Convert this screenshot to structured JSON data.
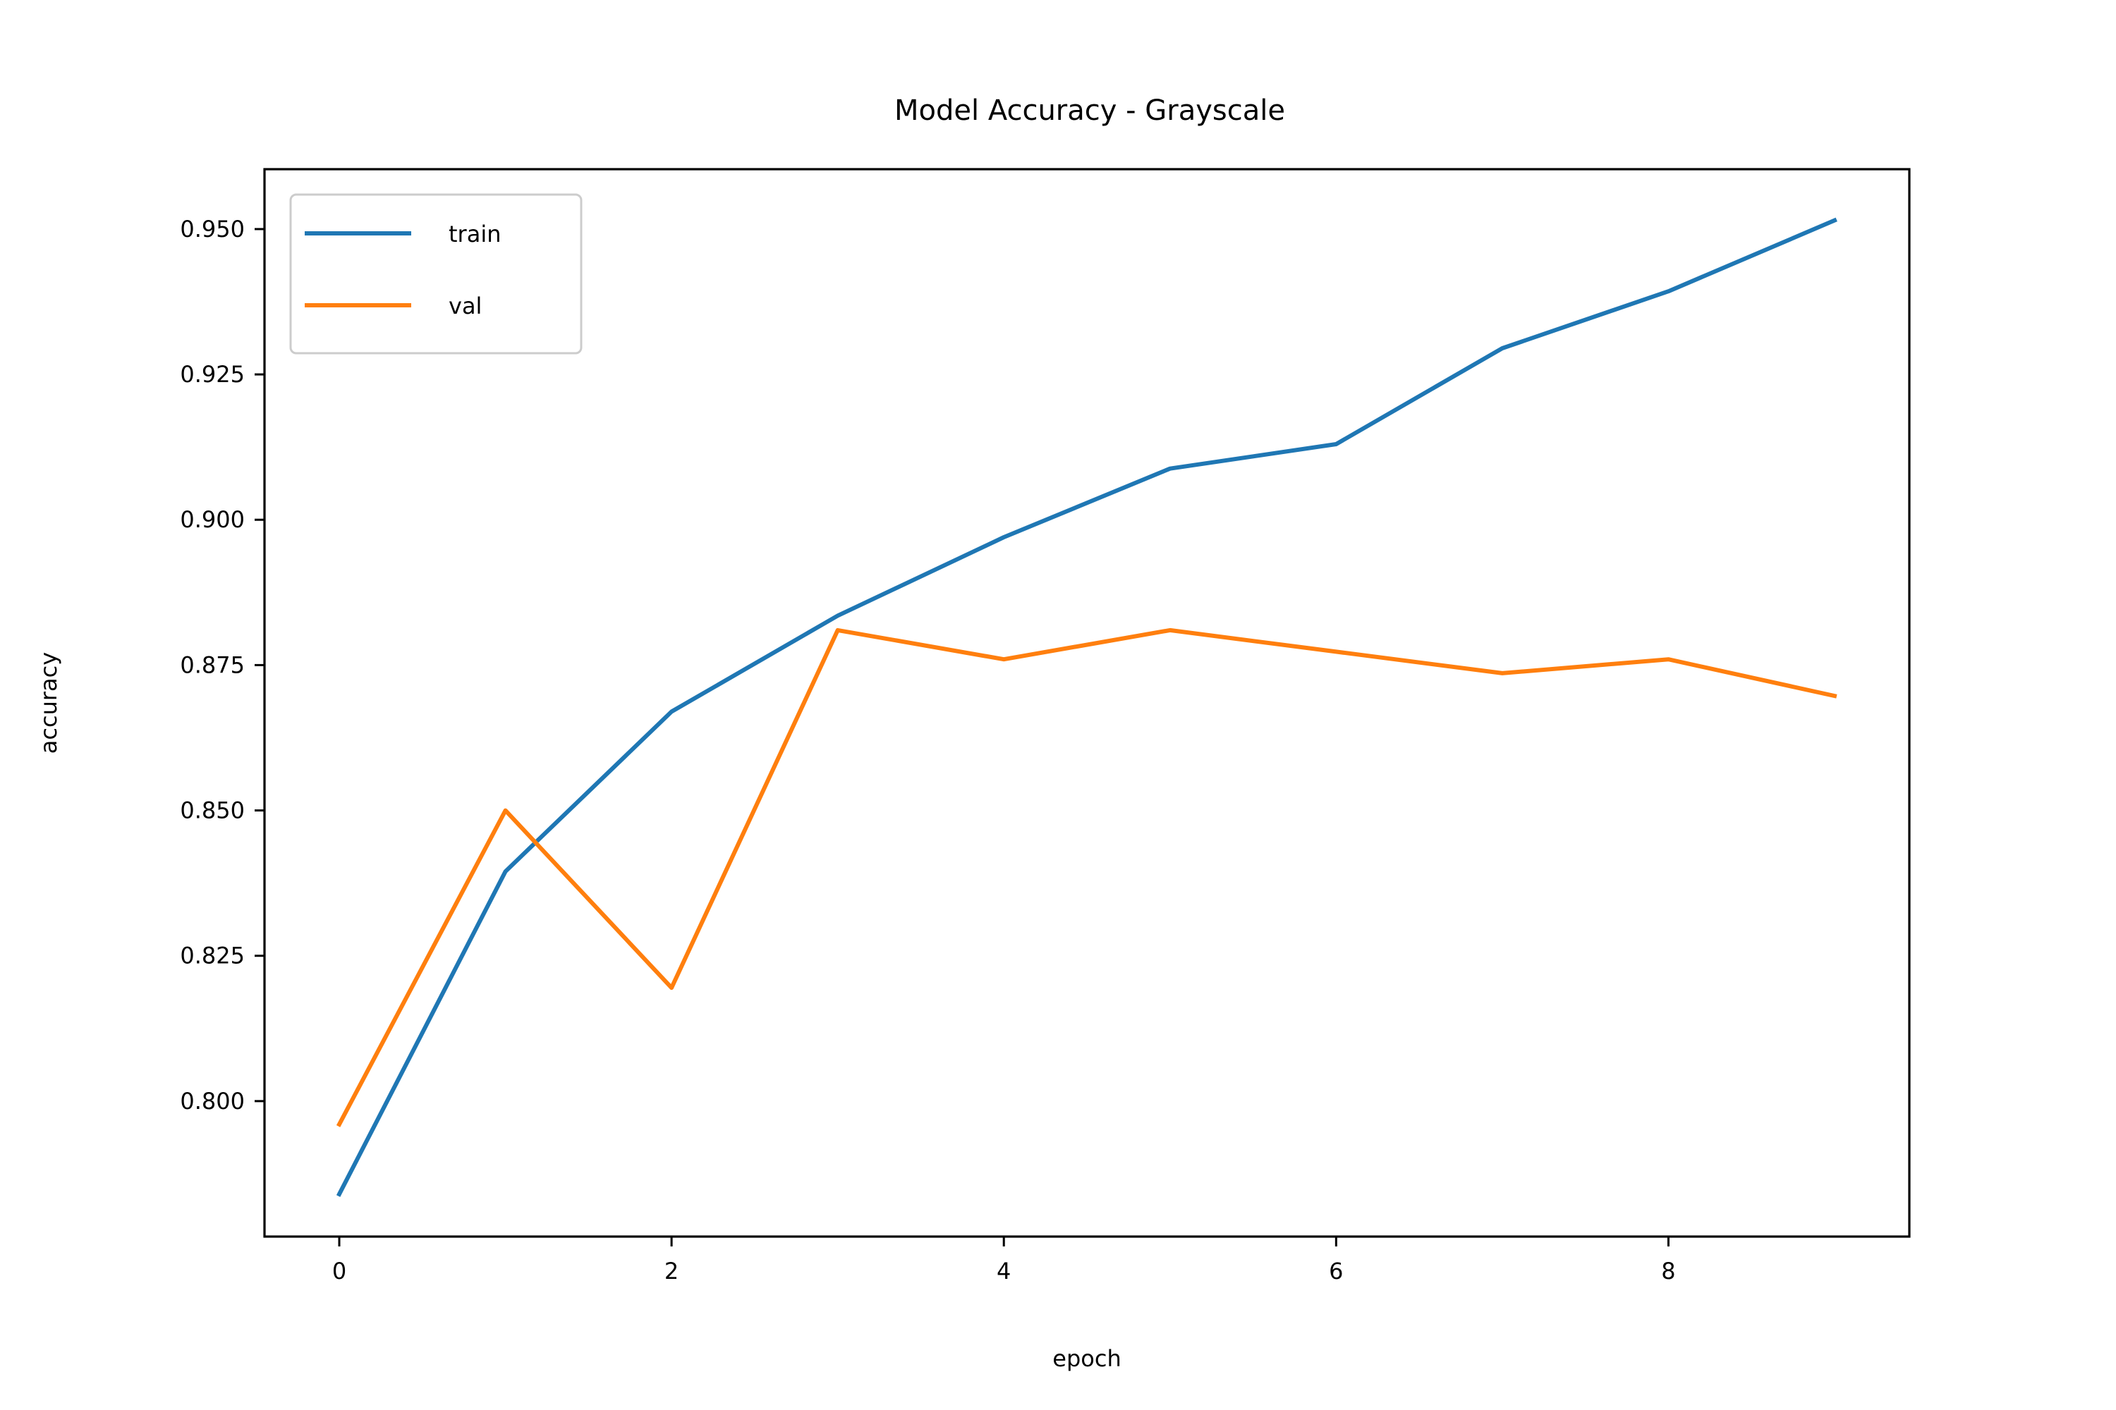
{
  "chart_data": {
    "type": "line",
    "title": "Model Accuracy - Grayscale",
    "xlabel": "epoch",
    "ylabel": "accuracy",
    "x": [
      0,
      1,
      2,
      3,
      4,
      5,
      6,
      7,
      8,
      9
    ],
    "xlim": [
      -0.45,
      9.45
    ],
    "ylim": [
      0.7767,
      0.9603
    ],
    "xticks": [
      0,
      2,
      4,
      6,
      8
    ],
    "yticks": [
      0.8,
      0.825,
      0.85,
      0.875,
      0.9,
      0.925,
      0.95
    ],
    "xtick_labels": [
      "0",
      "2",
      "4",
      "6",
      "8"
    ],
    "ytick_labels": [
      "0.800",
      "0.825",
      "0.850",
      "0.875",
      "0.900",
      "0.925",
      "0.950"
    ],
    "grid": false,
    "legend": "upper-left",
    "series": [
      {
        "name": "train",
        "color": "#1f77b4",
        "values": [
          0.784,
          0.8395,
          0.867,
          0.8835,
          0.897,
          0.9088,
          0.913,
          0.9295,
          0.9393,
          0.9515
        ]
      },
      {
        "name": "val",
        "color": "#ff7f0e",
        "values": [
          0.796,
          0.85,
          0.8195,
          0.881,
          0.876,
          0.881,
          0.8773,
          0.8736,
          0.876,
          0.8697
        ]
      }
    ]
  }
}
